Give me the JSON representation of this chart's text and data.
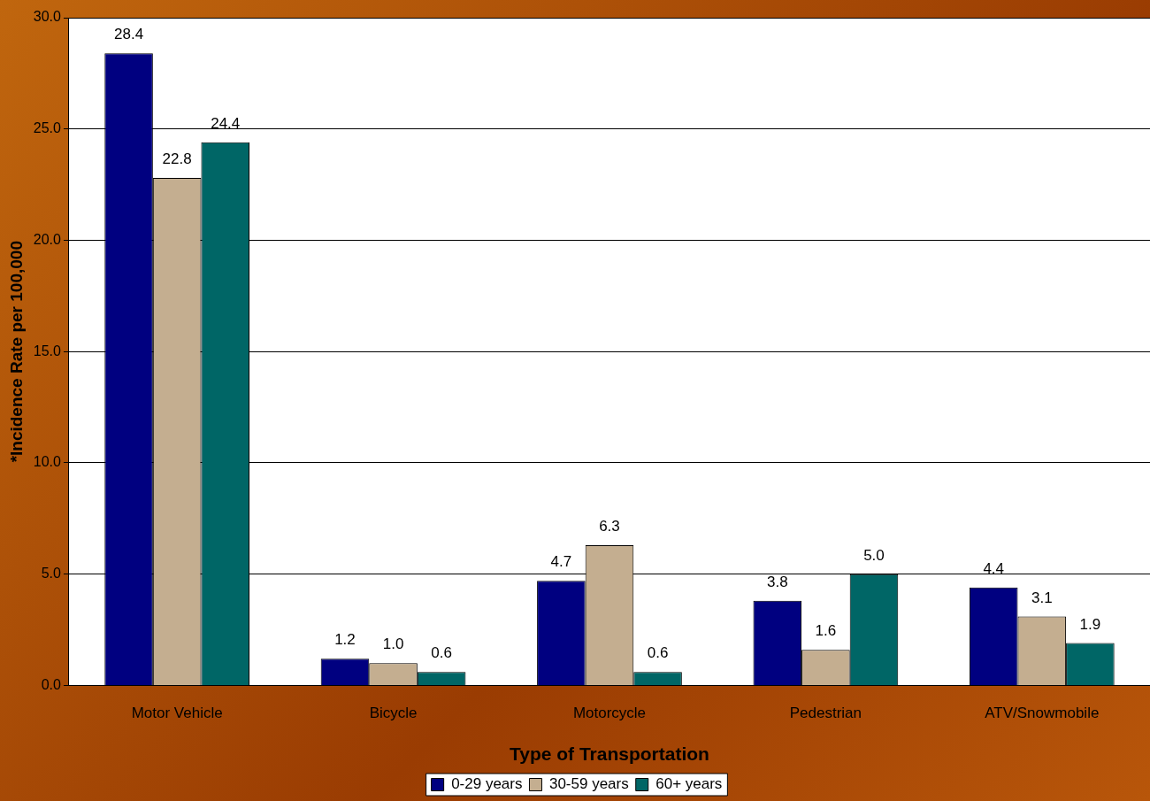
{
  "chart_data": {
    "type": "bar",
    "xlabel": "Type of Transportation",
    "ylabel": "*Incidence Rate per 100,000",
    "categories": [
      "Motor Vehicle",
      "Bicycle",
      "Motorcycle",
      "Pedestrian",
      "ATV/Snowmobile"
    ],
    "series": [
      {
        "name": "0-29 years",
        "color": "#000080",
        "values": [
          28.4,
          1.2,
          4.7,
          3.8,
          4.4
        ],
        "value_labels": [
          "28.4",
          "1.2",
          "4.7",
          "3.8",
          "4.4"
        ]
      },
      {
        "name": "30-59 years",
        "color": "#c4ae90",
        "values": [
          22.8,
          1.0,
          6.3,
          1.6,
          3.1
        ],
        "value_labels": [
          "22.8",
          "1.0",
          "6.3",
          "1.6",
          "3.1"
        ]
      },
      {
        "name": "60+ years",
        "color": "#006666",
        "values": [
          24.4,
          0.6,
          0.6,
          5.0,
          1.9
        ],
        "value_labels": [
          "24.4",
          "0.6",
          "0.6",
          "5.0",
          "1.9"
        ]
      }
    ],
    "ylim": [
      0,
      30
    ],
    "yticks": [
      {
        "value": 0,
        "label": "0.0"
      },
      {
        "value": 5,
        "label": "5.0"
      },
      {
        "value": 10,
        "label": "10.0"
      },
      {
        "value": 15,
        "label": "15.0"
      },
      {
        "value": 20,
        "label": "20.0"
      },
      {
        "value": 25,
        "label": "25.0"
      },
      {
        "value": 30,
        "label": "30.0"
      }
    ],
    "grid": "y",
    "legend": "bottom"
  }
}
